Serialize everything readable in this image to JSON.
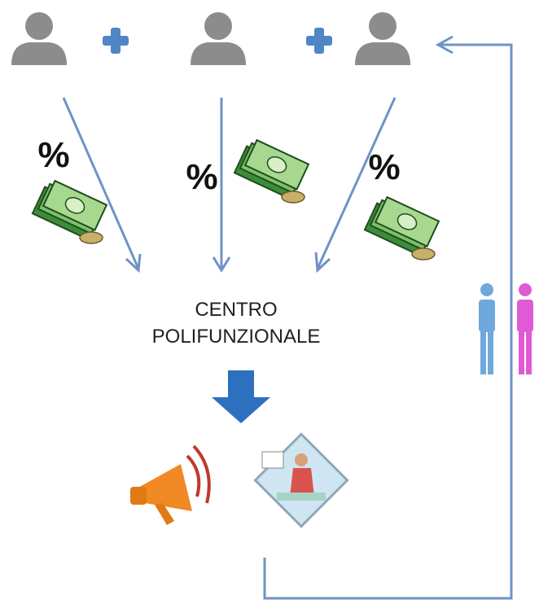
{
  "percent_labels": [
    "%",
    "%",
    "%"
  ],
  "center": {
    "label_lines": [
      "CENTRO",
      "POLIFUNZIONALE"
    ]
  }
}
